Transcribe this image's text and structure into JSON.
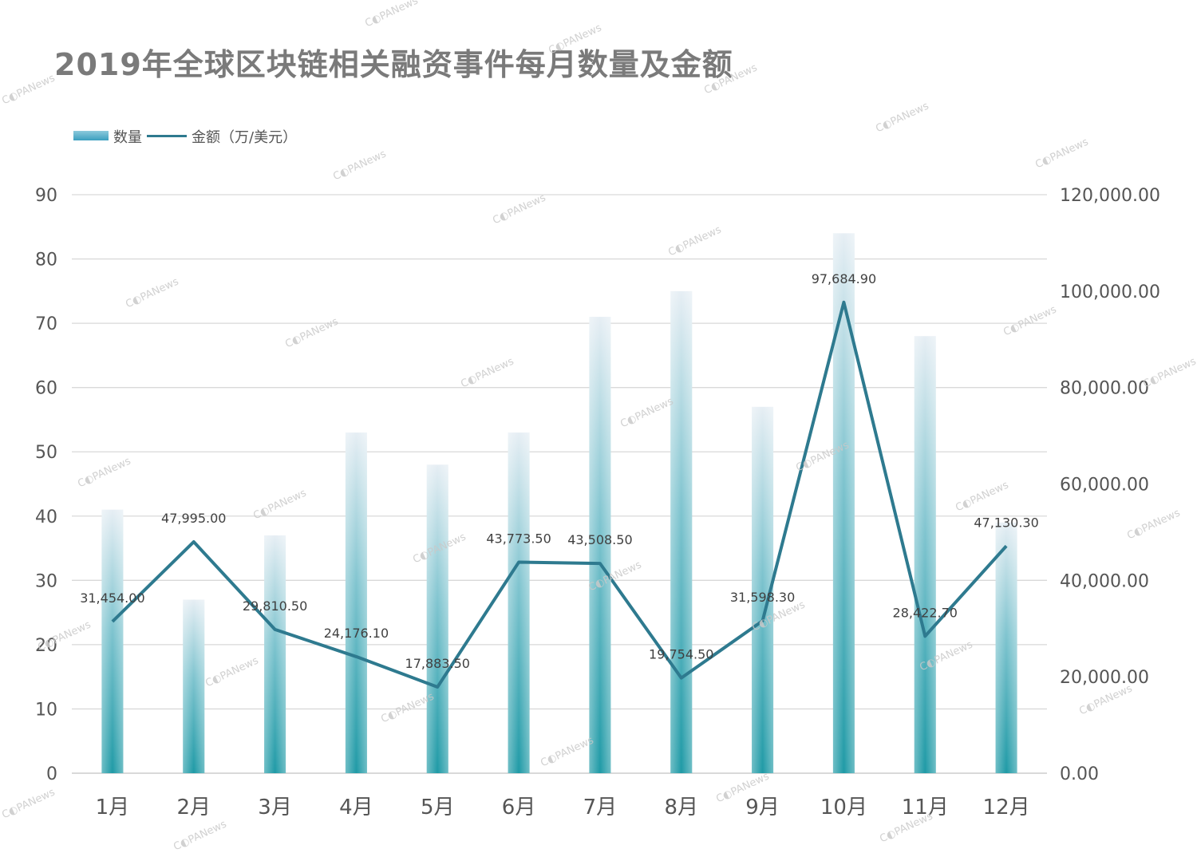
{
  "chart_data": {
    "type": "bar",
    "title": "2019年全球区块链相关融资事件每月数量及金额",
    "categories": [
      "1月",
      "2月",
      "3月",
      "4月",
      "5月",
      "6月",
      "7月",
      "8月",
      "9月",
      "10月",
      "11月",
      "12月"
    ],
    "series": [
      {
        "name": "数量",
        "type": "bar",
        "axis": "left",
        "values": [
          41,
          27,
          37,
          53,
          48,
          53,
          71,
          75,
          57,
          84,
          68,
          39
        ]
      },
      {
        "name": "金额（万/美元）",
        "type": "line",
        "axis": "right",
        "values": [
          31454.0,
          47995.0,
          29810.5,
          24176.1,
          17883.5,
          43773.5,
          43508.5,
          19754.5,
          31598.3,
          97684.9,
          28422.7,
          47130.3
        ],
        "labels": [
          "31,454.00",
          "47,995.00",
          "29,810.50",
          "24,176.10",
          "17,883.50",
          "43,773.50",
          "43,508.50",
          "19,754.50",
          "31,598.30",
          "97,684.90",
          "28,422.70",
          "47,130.30"
        ]
      }
    ],
    "y_left": {
      "range": [
        0,
        90
      ],
      "ticks": [
        "0",
        "10",
        "20",
        "30",
        "40",
        "50",
        "60",
        "70",
        "80",
        "90"
      ]
    },
    "y_right": {
      "range": [
        0,
        120000
      ],
      "ticks": [
        "0.00",
        "20,000.00",
        "40,000.00",
        "60,000.00",
        "80,000.00",
        "100,000.00",
        "120,000.00"
      ]
    },
    "grid": true,
    "legend_position": "top-left"
  },
  "legend": {
    "bar_label": "数量",
    "line_label": "金额（万/美元）"
  },
  "watermark": "PANews",
  "colors": {
    "bar_top": "#e6eef4",
    "bar_bottom": "#1f9aa6",
    "line": "#2e7a8f",
    "grid": "#d9d9d9",
    "axis_text": "#555555",
    "title": "#7a7a7a"
  }
}
